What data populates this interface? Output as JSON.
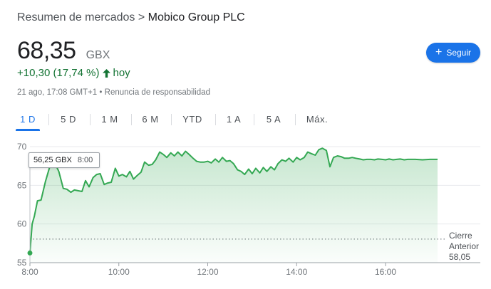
{
  "breadcrumb": {
    "parent": "Resumen de mercados",
    "separator": ">",
    "current": "Mobico Group PLC"
  },
  "quote": {
    "price": "68,35",
    "currency": "GBX",
    "change": "+10,30 (17,74 %)",
    "change_period": "hoy",
    "timestamp": "21 ago, 17:08 GMT+1",
    "disclaimer": "Renuncia de responsabilidad",
    "meta_separator": "•"
  },
  "follow_button": {
    "label": "Seguir",
    "icon": "plus-icon"
  },
  "tabs": [
    {
      "label": "1 D",
      "active": true
    },
    {
      "label": "5 D",
      "active": false
    },
    {
      "label": "1 M",
      "active": false
    },
    {
      "label": "6 M",
      "active": false
    },
    {
      "label": "YTD",
      "active": false
    },
    {
      "label": "1 A",
      "active": false
    },
    {
      "label": "5 A",
      "active": false
    },
    {
      "label": "Máx.",
      "active": false
    }
  ],
  "tooltip": {
    "value": "56,25 GBX",
    "time": "8:00"
  },
  "previous_close": {
    "label_line1": "Cierre",
    "label_line2": "Anterior",
    "value": "58,05"
  },
  "colors": {
    "line": "#34a853",
    "accent": "#1a73e8",
    "positive": "#137333",
    "gridline": "#e8eaed"
  },
  "chart_data": {
    "type": "area",
    "x_tick_labels": [
      "8:00",
      "10:00",
      "12:00",
      "14:00",
      "16:00"
    ],
    "y_tick_labels": [
      "55",
      "60",
      "65",
      "70"
    ],
    "ylim": [
      55,
      70.5
    ],
    "xlim_hours": [
      8.0,
      17.17
    ],
    "previous_close_value": 58.05,
    "grid": true,
    "series": [
      {
        "x": [
          8.0,
          8.05,
          8.1,
          8.17,
          8.25,
          8.35,
          8.45,
          8.55,
          8.65,
          8.75,
          8.83,
          8.92,
          9.0,
          9.08,
          9.17,
          9.25,
          9.33,
          9.42,
          9.5,
          9.58,
          9.67,
          9.75,
          9.83,
          9.92,
          10.0,
          10.08,
          10.17,
          10.25,
          10.33,
          10.42,
          10.5,
          10.58,
          10.67,
          10.75,
          10.83,
          10.92,
          11.0,
          11.08,
          11.17,
          11.25,
          11.33,
          11.42,
          11.5,
          11.58,
          11.67,
          11.75,
          11.83,
          11.92,
          12.0,
          12.08,
          12.17,
          12.25,
          12.33,
          12.42,
          12.5,
          12.58,
          12.67,
          12.75,
          12.83,
          12.92,
          13.0,
          13.08,
          13.17,
          13.25,
          13.33,
          13.42,
          13.5,
          13.58,
          13.67,
          13.75,
          13.83,
          13.92,
          14.0,
          14.08,
          14.17,
          14.25,
          14.33,
          14.42,
          14.5,
          14.58,
          14.67,
          14.75,
          14.83,
          14.92,
          15.0,
          15.08,
          15.17,
          15.25,
          15.33,
          15.42,
          15.5,
          15.58,
          15.67,
          15.75,
          15.83,
          15.92,
          16.0,
          16.08,
          16.17,
          16.25,
          16.33,
          16.42,
          16.5,
          16.67,
          16.83,
          17.0,
          17.17
        ],
        "y": [
          56.25,
          60.0,
          61.0,
          63.0,
          63.1,
          65.5,
          67.5,
          68.0,
          66.8,
          64.6,
          64.5,
          64.1,
          64.4,
          64.3,
          64.2,
          65.6,
          64.8,
          66.0,
          66.4,
          66.5,
          65.1,
          65.3,
          65.4,
          67.2,
          66.2,
          66.4,
          66.1,
          66.8,
          65.8,
          66.3,
          66.7,
          68.0,
          67.6,
          67.7,
          68.3,
          69.3,
          69.0,
          68.6,
          69.2,
          68.8,
          69.3,
          68.8,
          69.4,
          69.0,
          68.5,
          68.1,
          68.0,
          68.0,
          68.1,
          67.9,
          68.4,
          68.0,
          68.6,
          68.1,
          68.2,
          67.8,
          67.0,
          66.8,
          66.4,
          67.1,
          66.5,
          67.2,
          66.6,
          67.3,
          66.8,
          67.4,
          67.0,
          67.8,
          68.3,
          68.1,
          68.5,
          68.0,
          68.6,
          68.3,
          68.6,
          69.3,
          69.1,
          68.9,
          69.6,
          69.8,
          69.5,
          67.4,
          68.6,
          68.8,
          68.7,
          68.5,
          68.5,
          68.6,
          68.5,
          68.4,
          68.3,
          68.35,
          68.35,
          68.3,
          68.4,
          68.35,
          68.3,
          68.4,
          68.3,
          68.35,
          68.4,
          68.3,
          68.35,
          68.35,
          68.3,
          68.35,
          68.35
        ]
      }
    ]
  }
}
